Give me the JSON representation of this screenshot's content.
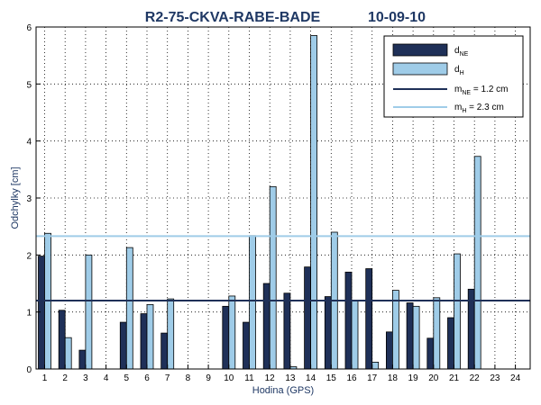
{
  "chart_data": {
    "type": "bar",
    "title": "R2-75-CKVA-RABE-BADE",
    "date": "10-09-10",
    "xlabel": "Hodina (GPS)",
    "ylabel": "Odchylky [cm]",
    "ylim": [
      0,
      6
    ],
    "yticks": [
      "0",
      "1",
      "2",
      "3",
      "4",
      "5",
      "6"
    ],
    "categories": [
      "1",
      "2",
      "3",
      "4",
      "5",
      "6",
      "7",
      "8",
      "9",
      "10",
      "11",
      "12",
      "13",
      "14",
      "15",
      "16",
      "17",
      "18",
      "19",
      "20",
      "21",
      "22",
      "23",
      "24"
    ],
    "grid": "dotted",
    "legend_position": "top-right",
    "series": [
      {
        "name": "d",
        "subscript": "NE",
        "color": "#1f3058",
        "values": [
          1.98,
          1.03,
          0.33,
          null,
          0.82,
          0.97,
          0.63,
          null,
          null,
          1.1,
          0.82,
          1.5,
          1.33,
          1.79,
          1.27,
          1.7,
          1.76,
          0.65,
          1.16,
          0.54,
          0.9,
          1.4,
          null,
          null
        ]
      },
      {
        "name": "d",
        "subscript": "H",
        "color": "#9fcce8",
        "values": [
          2.38,
          0.55,
          2.0,
          null,
          2.13,
          1.13,
          1.23,
          null,
          null,
          1.28,
          2.34,
          3.2,
          0.04,
          5.85,
          2.4,
          1.2,
          0.12,
          1.38,
          1.1,
          1.25,
          2.02,
          3.73,
          null,
          null
        ]
      }
    ],
    "mean_lines": [
      {
        "prefix": "m",
        "subscript": "NE",
        "suffix": " = 1.2 cm",
        "value": 1.2,
        "color": "#1f3058"
      },
      {
        "prefix": "m",
        "subscript": "H",
        "suffix": "  = 2.3 cm",
        "value": 2.33,
        "color": "#9fcce8"
      }
    ]
  }
}
